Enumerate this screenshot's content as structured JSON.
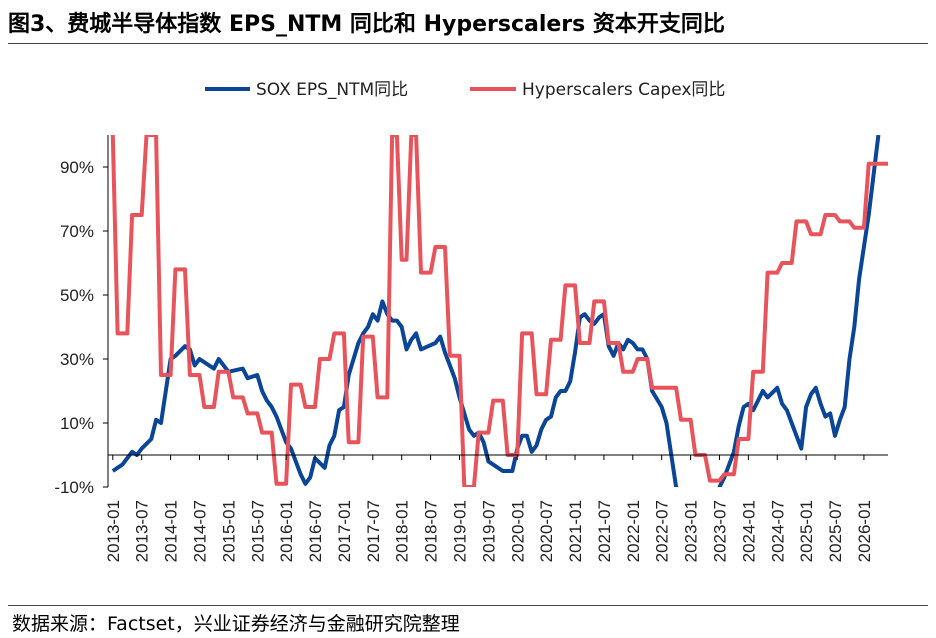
{
  "header": {
    "title": "图3、费城半导体指数 EPS_NTM 同比和 Hyperscalers 资本开支同比"
  },
  "footer": {
    "source": "数据来源：Factset，兴业证券经济与金融研究院整理"
  },
  "chart_data": {
    "type": "line",
    "title": "",
    "xlabel": "",
    "ylabel": "",
    "ylim": [
      -10,
      100
    ],
    "xlim": [
      "2012-12",
      "2026-06"
    ],
    "legend_position": "top",
    "grid": false,
    "y_ticks": [
      -10,
      10,
      30,
      50,
      70,
      90
    ],
    "y_tick_labels": [
      "-10%",
      "10%",
      "30%",
      "50%",
      "70%",
      "90%"
    ],
    "x_tick_labels": [
      "2013-01",
      "2013-07",
      "2014-01",
      "2014-07",
      "2015-01",
      "2015-07",
      "2016-01",
      "2016-07",
      "2017-01",
      "2017-07",
      "2018-01",
      "2018-07",
      "2019-01",
      "2019-07",
      "2020-01",
      "2020-07",
      "2021-01",
      "2021-07",
      "2022-01",
      "2022-07",
      "2023-01",
      "2023-07",
      "2024-01",
      "2024-07",
      "2025-01",
      "2025-07",
      "2026-01"
    ],
    "series": [
      {
        "name": "SOX EPS_NTM同比",
        "color": "#0a4597",
        "points": [
          [
            "2013-01",
            -5
          ],
          [
            "2013-03",
            -3
          ],
          [
            "2013-05",
            1
          ],
          [
            "2013-06",
            0
          ],
          [
            "2013-07",
            2
          ],
          [
            "2013-09",
            5
          ],
          [
            "2013-10",
            11
          ],
          [
            "2013-11",
            10
          ],
          [
            "2013-12",
            20
          ],
          [
            "2014-01",
            30
          ],
          [
            "2014-02",
            31
          ],
          [
            "2014-04",
            34
          ],
          [
            "2014-05",
            33
          ],
          [
            "2014-06",
            28
          ],
          [
            "2014-07",
            30
          ],
          [
            "2014-09",
            28
          ],
          [
            "2014-10",
            27
          ],
          [
            "2014-11",
            30
          ],
          [
            "2014-12",
            28
          ],
          [
            "2015-01",
            26
          ],
          [
            "2015-04",
            27
          ],
          [
            "2015-05",
            24
          ],
          [
            "2015-07",
            25
          ],
          [
            "2015-08",
            20
          ],
          [
            "2015-09",
            17
          ],
          [
            "2015-10",
            15
          ],
          [
            "2015-11",
            12
          ],
          [
            "2015-12",
            8
          ],
          [
            "2016-01",
            4
          ],
          [
            "2016-02",
            2
          ],
          [
            "2016-03",
            -2
          ],
          [
            "2016-04",
            -6
          ],
          [
            "2016-05",
            -9
          ],
          [
            "2016-06",
            -7
          ],
          [
            "2016-07",
            -1
          ],
          [
            "2016-09",
            -4
          ],
          [
            "2016-10",
            3
          ],
          [
            "2016-11",
            6
          ],
          [
            "2016-12",
            14
          ],
          [
            "2017-01",
            15
          ],
          [
            "2017-02",
            25
          ],
          [
            "2017-04",
            35
          ],
          [
            "2017-05",
            38
          ],
          [
            "2017-06",
            40
          ],
          [
            "2017-07",
            44
          ],
          [
            "2017-08",
            42
          ],
          [
            "2017-09",
            48
          ],
          [
            "2017-10",
            44
          ],
          [
            "2017-11",
            42
          ],
          [
            "2017-12",
            42
          ],
          [
            "2018-01",
            40
          ],
          [
            "2018-02",
            33
          ],
          [
            "2018-03",
            36
          ],
          [
            "2018-04",
            38
          ],
          [
            "2018-05",
            33
          ],
          [
            "2018-08",
            35
          ],
          [
            "2018-09",
            37
          ],
          [
            "2018-10",
            32
          ],
          [
            "2018-11",
            28
          ],
          [
            "2018-12",
            24
          ],
          [
            "2019-01",
            18
          ],
          [
            "2019-03",
            8
          ],
          [
            "2019-04",
            6
          ],
          [
            "2019-05",
            7
          ],
          [
            "2019-06",
            4
          ],
          [
            "2019-07",
            -2
          ],
          [
            "2019-08",
            -3
          ],
          [
            "2019-09",
            -4
          ],
          [
            "2019-10",
            -5
          ],
          [
            "2019-12",
            -5
          ],
          [
            "2020-01",
            2
          ],
          [
            "2020-02",
            6
          ],
          [
            "2020-03",
            6
          ],
          [
            "2020-04",
            1
          ],
          [
            "2020-05",
            3
          ],
          [
            "2020-06",
            8
          ],
          [
            "2020-07",
            11
          ],
          [
            "2020-08",
            12
          ],
          [
            "2020-09",
            18
          ],
          [
            "2020-10",
            20
          ],
          [
            "2020-11",
            20
          ],
          [
            "2020-12",
            23
          ],
          [
            "2021-01",
            32
          ],
          [
            "2021-02",
            43
          ],
          [
            "2021-03",
            44
          ],
          [
            "2021-04",
            42
          ],
          [
            "2021-05",
            41
          ],
          [
            "2021-06",
            43
          ],
          [
            "2021-07",
            44
          ],
          [
            "2021-08",
            34
          ],
          [
            "2021-09",
            31
          ],
          [
            "2021-10",
            35
          ],
          [
            "2021-11",
            33
          ],
          [
            "2021-12",
            36
          ],
          [
            "2022-01",
            35
          ],
          [
            "2022-02",
            33
          ],
          [
            "2022-03",
            33
          ],
          [
            "2022-04",
            30
          ],
          [
            "2022-05",
            20
          ],
          [
            "2022-07",
            15
          ],
          [
            "2022-08",
            10
          ],
          [
            "2022-09",
            0
          ],
          [
            "2022-10",
            -10
          ],
          [
            "2023-01",
            -15
          ],
          [
            "2023-04",
            -15
          ],
          [
            "2023-05",
            -18
          ],
          [
            "2023-06",
            -16
          ],
          [
            "2023-07",
            -10
          ],
          [
            "2023-08",
            -7
          ],
          [
            "2023-10",
            1
          ],
          [
            "2023-11",
            9
          ],
          [
            "2023-12",
            15
          ],
          [
            "2024-01",
            16
          ],
          [
            "2024-02",
            14
          ],
          [
            "2024-03",
            17
          ],
          [
            "2024-04",
            20
          ],
          [
            "2024-05",
            18
          ],
          [
            "2024-07",
            21
          ],
          [
            "2024-08",
            16
          ],
          [
            "2024-09",
            14
          ],
          [
            "2024-10",
            10
          ],
          [
            "2024-11",
            6
          ],
          [
            "2024-12",
            2
          ],
          [
            "2025-01",
            15
          ],
          [
            "2025-02",
            19
          ],
          [
            "2025-03",
            21
          ],
          [
            "2025-04",
            16
          ],
          [
            "2025-05",
            12
          ],
          [
            "2025-06",
            13
          ],
          [
            "2025-07",
            6
          ],
          [
            "2025-08",
            11
          ],
          [
            "2025-09",
            15
          ],
          [
            "2025-10",
            30
          ],
          [
            "2025-11",
            40
          ],
          [
            "2025-12",
            55
          ],
          [
            "2026-01",
            65
          ],
          [
            "2026-02",
            75
          ],
          [
            "2026-04",
            100
          ]
        ]
      },
      {
        "name": "Hyperscalers Capex同比",
        "color": "#e8545b",
        "points": [
          [
            "2013-01",
            100
          ],
          [
            "2013-02",
            38
          ],
          [
            "2013-04",
            38
          ],
          [
            "2013-05",
            75
          ],
          [
            "2013-07",
            75
          ],
          [
            "2013-08",
            100
          ],
          [
            "2013-10",
            100
          ],
          [
            "2013-11",
            25
          ],
          [
            "2014-01",
            25
          ],
          [
            "2014-02",
            58
          ],
          [
            "2014-04",
            58
          ],
          [
            "2014-05",
            25
          ],
          [
            "2014-07",
            25
          ],
          [
            "2014-08",
            15
          ],
          [
            "2014-10",
            15
          ],
          [
            "2014-11",
            26
          ],
          [
            "2015-01",
            26
          ],
          [
            "2015-02",
            18
          ],
          [
            "2015-04",
            18
          ],
          [
            "2015-05",
            13
          ],
          [
            "2015-07",
            13
          ],
          [
            "2015-08",
            7
          ],
          [
            "2015-10",
            7
          ],
          [
            "2015-11",
            -9
          ],
          [
            "2016-01",
            -9
          ],
          [
            "2016-02",
            22
          ],
          [
            "2016-04",
            22
          ],
          [
            "2016-05",
            15
          ],
          [
            "2016-07",
            15
          ],
          [
            "2016-08",
            30
          ],
          [
            "2016-10",
            30
          ],
          [
            "2016-11",
            38
          ],
          [
            "2017-01",
            38
          ],
          [
            "2017-02",
            4
          ],
          [
            "2017-04",
            4
          ],
          [
            "2017-05",
            37
          ],
          [
            "2017-07",
            37
          ],
          [
            "2017-08",
            18
          ],
          [
            "2017-10",
            18
          ],
          [
            "2017-11",
            100
          ],
          [
            "2017-12",
            100
          ],
          [
            "2018-01",
            61
          ],
          [
            "2018-02",
            61
          ],
          [
            "2018-03",
            100
          ],
          [
            "2018-04",
            100
          ],
          [
            "2018-05",
            57
          ],
          [
            "2018-07",
            57
          ],
          [
            "2018-08",
            65
          ],
          [
            "2018-10",
            65
          ],
          [
            "2018-11",
            31
          ],
          [
            "2019-01",
            31
          ],
          [
            "2019-02",
            -10
          ],
          [
            "2019-04",
            -10
          ],
          [
            "2019-05",
            7
          ],
          [
            "2019-07",
            7
          ],
          [
            "2019-08",
            17
          ],
          [
            "2019-10",
            17
          ],
          [
            "2019-11",
            0
          ],
          [
            "2020-01",
            0
          ],
          [
            "2020-02",
            38
          ],
          [
            "2020-04",
            38
          ],
          [
            "2020-05",
            19
          ],
          [
            "2020-07",
            19
          ],
          [
            "2020-08",
            36
          ],
          [
            "2020-10",
            36
          ],
          [
            "2020-11",
            53
          ],
          [
            "2021-01",
            53
          ],
          [
            "2021-02",
            35
          ],
          [
            "2021-04",
            35
          ],
          [
            "2021-05",
            48
          ],
          [
            "2021-07",
            48
          ],
          [
            "2021-08",
            35
          ],
          [
            "2021-10",
            35
          ],
          [
            "2021-11",
            26
          ],
          [
            "2022-01",
            26
          ],
          [
            "2022-02",
            30
          ],
          [
            "2022-04",
            30
          ],
          [
            "2022-05",
            21
          ],
          [
            "2022-07",
            21
          ],
          [
            "2022-08",
            21
          ],
          [
            "2022-10",
            21
          ],
          [
            "2022-11",
            11
          ],
          [
            "2023-01",
            11
          ],
          [
            "2023-02",
            0
          ],
          [
            "2023-04",
            0
          ],
          [
            "2023-05",
            -8
          ],
          [
            "2023-07",
            -8
          ],
          [
            "2023-08",
            -6
          ],
          [
            "2023-10",
            -6
          ],
          [
            "2023-11",
            5
          ],
          [
            "2024-01",
            5
          ],
          [
            "2024-02",
            26
          ],
          [
            "2024-04",
            26
          ],
          [
            "2024-05",
            57
          ],
          [
            "2024-07",
            57
          ],
          [
            "2024-08",
            60
          ],
          [
            "2024-10",
            60
          ],
          [
            "2024-11",
            73
          ],
          [
            "2025-01",
            73
          ],
          [
            "2025-02",
            69
          ],
          [
            "2025-04",
            69
          ],
          [
            "2025-05",
            75
          ],
          [
            "2025-07",
            75
          ],
          [
            "2025-08",
            73
          ],
          [
            "2025-10",
            73
          ],
          [
            "2025-11",
            71
          ],
          [
            "2026-01",
            71
          ],
          [
            "2026-02",
            91
          ],
          [
            "2026-06",
            91
          ]
        ]
      }
    ]
  }
}
